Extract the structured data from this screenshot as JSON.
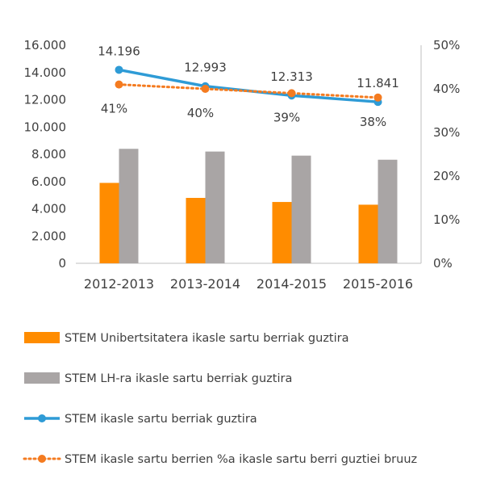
{
  "chart_data": {
    "type": "bar",
    "categories": [
      "2012-2013",
      "2013-2014",
      "2014-2015",
      "2015-2016"
    ],
    "series": [
      {
        "name": "STEM Unibertsitatera ikasle sartu berriak guztira",
        "kind": "bar",
        "axis": "left",
        "color": "#FF8C00",
        "values": [
          5900,
          4800,
          4500,
          4300
        ]
      },
      {
        "name": "STEM LH-ra ikasle sartu berriak guztira",
        "kind": "bar",
        "axis": "left",
        "color": "#A9A5A5",
        "values": [
          8400,
          8200,
          7900,
          7600
        ]
      },
      {
        "name": "STEM ikasle sartu berriak guztira",
        "kind": "line",
        "axis": "left",
        "color": "#2E9BD6",
        "values": [
          14196,
          12993,
          12313,
          11841
        ],
        "labels": [
          "14.196",
          "12.993",
          "12.313",
          "11.841"
        ]
      },
      {
        "name": "STEM ikasle sartu berrien %a ikasle sartu berri guztiei bruuz",
        "kind": "dotted-line",
        "axis": "right",
        "color": "#F47B20",
        "values": [
          41,
          40,
          39,
          38
        ],
        "labels": [
          "41%",
          "40%",
          "39%",
          "38%"
        ]
      }
    ],
    "y_left": {
      "min": 0,
      "max": 16000,
      "ticks": [
        "0",
        "2.000",
        "4.000",
        "6.000",
        "8.000",
        "10.000",
        "12.000",
        "14.000",
        "16.000"
      ]
    },
    "y_right": {
      "min": 0,
      "max": 50,
      "ticks": [
        "0%",
        "10%",
        "20%",
        "30%",
        "40%",
        "50%"
      ]
    },
    "grid": false,
    "legend_position": "bottom"
  }
}
